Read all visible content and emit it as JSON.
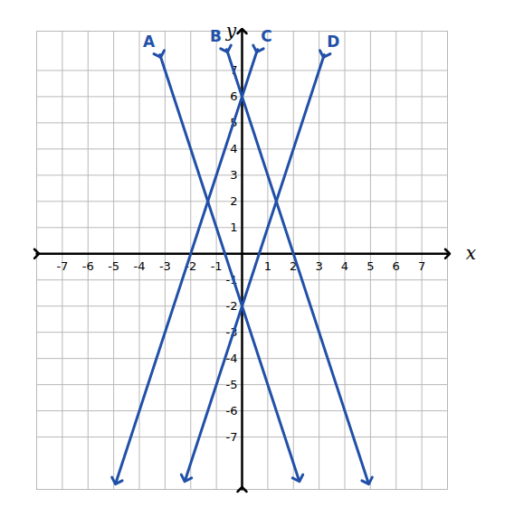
{
  "chart_data": {
    "type": "line",
    "x_label": "x",
    "y_label": "y",
    "xlim": [
      -8,
      8
    ],
    "ylim": [
      -9,
      8.5
    ],
    "xticks": [
      -7,
      -6,
      -5,
      -4,
      -3,
      -2,
      -1,
      1,
      2,
      3,
      4,
      5,
      6,
      7
    ],
    "yticks": [
      -7,
      -6,
      -5,
      -4,
      -3,
      -2,
      -1,
      1,
      2,
      3,
      4,
      5,
      6,
      7
    ],
    "grid": true,
    "marker": "arrow",
    "series": [
      {
        "name": "A",
        "color": "#2150a8",
        "x": [
          -3.2,
          2.2
        ],
        "values": [
          7.6,
          -8.6
        ]
      },
      {
        "name": "B",
        "color": "#2150a8",
        "x": [
          -0.6,
          4.9
        ],
        "values": [
          7.8,
          -8.7
        ]
      },
      {
        "name": "C",
        "color": "#2150a8",
        "x": [
          0.6,
          -4.9
        ],
        "values": [
          7.8,
          -8.7
        ]
      },
      {
        "name": "D",
        "color": "#2150a8",
        "x": [
          3.2,
          -2.2
        ],
        "values": [
          7.6,
          -8.6
        ]
      }
    ]
  }
}
